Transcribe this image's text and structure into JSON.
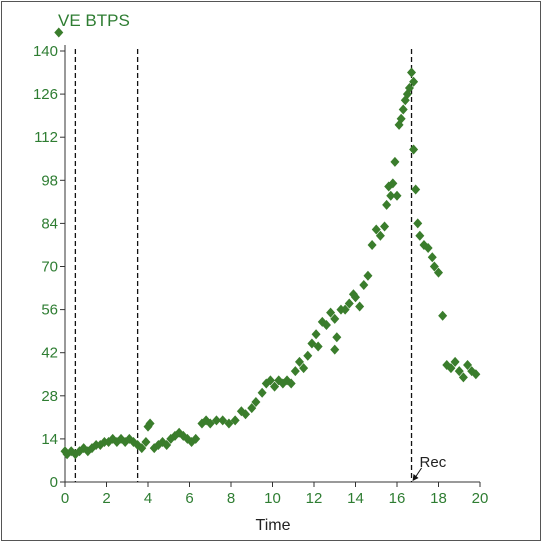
{
  "chart_data": {
    "type": "scatter",
    "title": "VE BTPS",
    "xlabel": "Time",
    "ylabel": "",
    "xlim": [
      0,
      20
    ],
    "ylim": [
      0,
      140
    ],
    "x_ticks": [
      "0",
      "2",
      "4",
      "6",
      "8",
      "10",
      "12",
      "14",
      "16",
      "18",
      "20"
    ],
    "y_ticks": [
      "0",
      "14",
      "28",
      "42",
      "56",
      "70",
      "84",
      "98",
      "112",
      "126",
      "140"
    ],
    "grid": false,
    "series_color": "#3a7d2c",
    "vertical_markers": [
      0.5,
      3.5,
      16.7
    ],
    "annotation": {
      "label": "Rec",
      "x": 16.7
    },
    "points": [
      [
        -0.3,
        146
      ],
      [
        0.0,
        10
      ],
      [
        0.1,
        9
      ],
      [
        0.3,
        10
      ],
      [
        0.5,
        9
      ],
      [
        0.7,
        10
      ],
      [
        0.9,
        11
      ],
      [
        1.1,
        10
      ],
      [
        1.3,
        11
      ],
      [
        1.5,
        12
      ],
      [
        1.7,
        12
      ],
      [
        1.9,
        13
      ],
      [
        2.1,
        13
      ],
      [
        2.3,
        14
      ],
      [
        2.5,
        13
      ],
      [
        2.7,
        14
      ],
      [
        2.9,
        13
      ],
      [
        3.1,
        14
      ],
      [
        3.3,
        13
      ],
      [
        3.5,
        12
      ],
      [
        3.7,
        11
      ],
      [
        3.9,
        13
      ],
      [
        4.0,
        18
      ],
      [
        4.1,
        19
      ],
      [
        4.3,
        11
      ],
      [
        4.5,
        12
      ],
      [
        4.7,
        13
      ],
      [
        4.9,
        12
      ],
      [
        5.1,
        14
      ],
      [
        5.3,
        15
      ],
      [
        5.5,
        16
      ],
      [
        5.7,
        15
      ],
      [
        5.9,
        14
      ],
      [
        6.1,
        13
      ],
      [
        6.3,
        14
      ],
      [
        6.6,
        19
      ],
      [
        6.8,
        20
      ],
      [
        7.0,
        19
      ],
      [
        7.3,
        20
      ],
      [
        7.6,
        20
      ],
      [
        7.9,
        19
      ],
      [
        8.2,
        20
      ],
      [
        8.5,
        23
      ],
      [
        8.7,
        22
      ],
      [
        9.0,
        24
      ],
      [
        9.2,
        26
      ],
      [
        9.5,
        29
      ],
      [
        9.7,
        32
      ],
      [
        9.9,
        33
      ],
      [
        10.1,
        31
      ],
      [
        10.3,
        33
      ],
      [
        10.5,
        32
      ],
      [
        10.7,
        33
      ],
      [
        10.9,
        32
      ],
      [
        11.1,
        36
      ],
      [
        11.3,
        39
      ],
      [
        11.5,
        37
      ],
      [
        11.7,
        41
      ],
      [
        11.9,
        45
      ],
      [
        12.1,
        48
      ],
      [
        12.2,
        44
      ],
      [
        12.4,
        52
      ],
      [
        12.6,
        51
      ],
      [
        12.8,
        55
      ],
      [
        13.0,
        53
      ],
      [
        13.0,
        43
      ],
      [
        13.1,
        47
      ],
      [
        13.3,
        56
      ],
      [
        13.5,
        56
      ],
      [
        13.7,
        58
      ],
      [
        13.9,
        61
      ],
      [
        14.0,
        60
      ],
      [
        14.2,
        57
      ],
      [
        14.4,
        64
      ],
      [
        14.6,
        67
      ],
      [
        14.8,
        77
      ],
      [
        15.0,
        82
      ],
      [
        15.2,
        80
      ],
      [
        15.4,
        83
      ],
      [
        15.5,
        90
      ],
      [
        15.6,
        96
      ],
      [
        15.7,
        93
      ],
      [
        15.8,
        97
      ],
      [
        15.9,
        104
      ],
      [
        16.0,
        93
      ],
      [
        16.1,
        116
      ],
      [
        16.2,
        118
      ],
      [
        16.3,
        121
      ],
      [
        16.4,
        124
      ],
      [
        16.5,
        126
      ],
      [
        16.6,
        128
      ],
      [
        16.7,
        133
      ],
      [
        16.8,
        130
      ],
      [
        16.8,
        108
      ],
      [
        16.9,
        95
      ],
      [
        17.0,
        84
      ],
      [
        17.1,
        80
      ],
      [
        17.3,
        77
      ],
      [
        17.5,
        76
      ],
      [
        17.7,
        73
      ],
      [
        17.8,
        70
      ],
      [
        18.0,
        68
      ],
      [
        18.2,
        54
      ],
      [
        18.4,
        38
      ],
      [
        18.6,
        37
      ],
      [
        18.8,
        39
      ],
      [
        19.0,
        36
      ],
      [
        19.2,
        34
      ],
      [
        19.4,
        38
      ],
      [
        19.6,
        36
      ],
      [
        19.8,
        35
      ]
    ]
  }
}
